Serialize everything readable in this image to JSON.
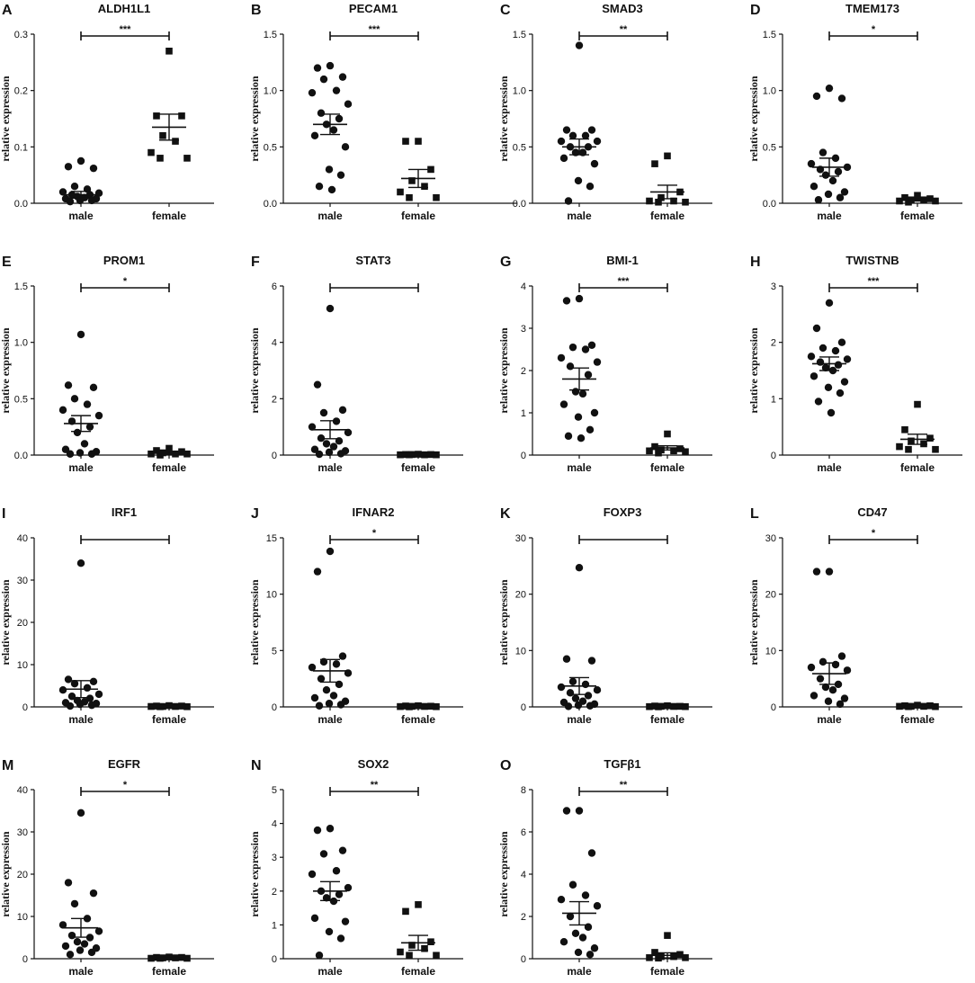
{
  "figure": {
    "ylabel": "relative expression",
    "groups": [
      "male",
      "female"
    ]
  },
  "chart_data": [
    {
      "id": "A",
      "type": "scatter",
      "title": "ALDH1L1",
      "ylabel": "relative expression",
      "ylim": [
        0,
        0.3
      ],
      "ticks": [
        0,
        0.1,
        0.2,
        0.3
      ],
      "tick_labels": [
        "0.0",
        "0.1",
        "0.2",
        "0.3"
      ],
      "significance": "***",
      "series": [
        {
          "name": "male",
          "marker": "circle",
          "values": [
            0.075,
            0.065,
            0.062,
            0.03,
            0.025,
            0.02,
            0.018,
            0.015,
            0.015,
            0.012,
            0.01,
            0.008,
            0.008,
            0.005,
            0.005,
            0.003
          ],
          "mean": 0.015,
          "sem": 0.006
        },
        {
          "name": "female",
          "marker": "square",
          "values": [
            0.27,
            0.155,
            0.155,
            0.12,
            0.11,
            0.09,
            0.08,
            0.08
          ],
          "mean": 0.135,
          "sem": 0.023
        }
      ]
    },
    {
      "id": "B",
      "type": "scatter",
      "title": "PECAM1",
      "ylabel": "relative expression",
      "ylim": [
        0,
        1.5
      ],
      "ticks": [
        0,
        0.5,
        1.0,
        1.5
      ],
      "tick_labels": [
        "0.0",
        "0.5",
        "1.0",
        "1.5"
      ],
      "significance": "***",
      "series": [
        {
          "name": "male",
          "marker": "circle",
          "values": [
            1.22,
            1.2,
            1.12,
            1.1,
            1.0,
            0.98,
            0.88,
            0.8,
            0.75,
            0.7,
            0.65,
            0.6,
            0.5,
            0.3,
            0.25,
            0.15,
            0.12
          ],
          "mean": 0.7,
          "sem": 0.09
        },
        {
          "name": "female",
          "marker": "square",
          "values": [
            0.55,
            0.55,
            0.3,
            0.2,
            0.15,
            0.1,
            0.05,
            0.05
          ],
          "mean": 0.22,
          "sem": 0.08
        }
      ]
    },
    {
      "id": "C",
      "type": "scatter",
      "title": "SMAD3",
      "ylabel": "relative expression",
      "ylim": [
        0,
        1.5
      ],
      "ticks": [
        0,
        0.5,
        1.0,
        1.5
      ],
      "tick_labels": [
        "0.0",
        "0.5",
        "1.0",
        "1.5"
      ],
      "significance": "**",
      "series": [
        {
          "name": "male",
          "marker": "circle",
          "values": [
            1.4,
            0.65,
            0.65,
            0.6,
            0.6,
            0.55,
            0.55,
            0.5,
            0.5,
            0.45,
            0.45,
            0.4,
            0.35,
            0.2,
            0.15,
            0.02
          ],
          "mean": 0.5,
          "sem": 0.07
        },
        {
          "name": "female",
          "marker": "square",
          "values": [
            0.42,
            0.35,
            0.1,
            0.05,
            0.02,
            0.02,
            0.01,
            0.01
          ],
          "mean": 0.1,
          "sem": 0.06
        }
      ]
    },
    {
      "id": "D",
      "type": "scatter",
      "title": "TMEM173",
      "ylabel": "relative expression",
      "ylim": [
        0,
        1.5
      ],
      "ticks": [
        0,
        0.5,
        1.0,
        1.5
      ],
      "tick_labels": [
        "0.0",
        "0.5",
        "1.0",
        "1.5"
      ],
      "significance": "*",
      "series": [
        {
          "name": "male",
          "marker": "circle",
          "values": [
            1.02,
            0.95,
            0.93,
            0.45,
            0.4,
            0.35,
            0.32,
            0.3,
            0.28,
            0.25,
            0.2,
            0.15,
            0.1,
            0.08,
            0.05,
            0.03
          ],
          "mean": 0.32,
          "sem": 0.08
        },
        {
          "name": "female",
          "marker": "square",
          "values": [
            0.07,
            0.05,
            0.04,
            0.03,
            0.03,
            0.02,
            0.02,
            0.01
          ],
          "mean": 0.03,
          "sem": 0.01
        }
      ]
    },
    {
      "id": "E",
      "type": "scatter",
      "title": "PROM1",
      "ylabel": "relative expression",
      "ylim": [
        0,
        1.5
      ],
      "ticks": [
        0,
        0.5,
        1.0,
        1.5
      ],
      "tick_labels": [
        "0.0",
        "0.5",
        "1.0",
        "1.5"
      ],
      "significance": "*",
      "series": [
        {
          "name": "male",
          "marker": "circle",
          "values": [
            1.07,
            0.62,
            0.6,
            0.5,
            0.45,
            0.4,
            0.35,
            0.3,
            0.25,
            0.2,
            0.1,
            0.05,
            0.03,
            0.02,
            0.01,
            0.01
          ],
          "mean": 0.28,
          "sem": 0.07
        },
        {
          "name": "female",
          "marker": "square",
          "values": [
            0.06,
            0.04,
            0.03,
            0.02,
            0.01,
            0.01,
            0.01,
            0.0
          ],
          "mean": 0.02,
          "sem": 0.01
        }
      ]
    },
    {
      "id": "F",
      "type": "scatter",
      "title": "STAT3",
      "ylabel": "relative expression",
      "ylim": [
        0,
        6
      ],
      "ticks": [
        0,
        2,
        4,
        6
      ],
      "tick_labels": [
        "0",
        "2",
        "4",
        "6"
      ],
      "significance": "",
      "series": [
        {
          "name": "male",
          "marker": "circle",
          "values": [
            5.2,
            2.5,
            1.6,
            1.5,
            1.2,
            1.0,
            0.8,
            0.6,
            0.5,
            0.4,
            0.3,
            0.2,
            0.15,
            0.1,
            0.05,
            0.03
          ],
          "mean": 0.9,
          "sem": 0.32
        },
        {
          "name": "female",
          "marker": "square",
          "values": [
            0.03,
            0.02,
            0.02,
            0.02,
            0.01,
            0.01,
            0.01,
            0.01
          ],
          "mean": 0.02,
          "sem": 0.005
        }
      ]
    },
    {
      "id": "G",
      "type": "scatter",
      "title": "BMI-1",
      "ylabel": "relative expression",
      "ylim": [
        0,
        4
      ],
      "ticks": [
        0,
        1,
        2,
        3,
        4
      ],
      "tick_labels": [
        "0",
        "1",
        "2",
        "3",
        "4"
      ],
      "significance": "***",
      "series": [
        {
          "name": "male",
          "marker": "circle",
          "values": [
            3.7,
            3.65,
            2.6,
            2.55,
            2.5,
            2.3,
            2.2,
            2.1,
            1.9,
            1.5,
            1.45,
            1.2,
            1.0,
            0.9,
            0.6,
            0.45,
            0.4
          ],
          "mean": 1.8,
          "sem": 0.26
        },
        {
          "name": "female",
          "marker": "square",
          "values": [
            0.5,
            0.2,
            0.15,
            0.12,
            0.1,
            0.1,
            0.08,
            0.05
          ],
          "mean": 0.17,
          "sem": 0.05
        }
      ]
    },
    {
      "id": "H",
      "type": "scatter",
      "title": "TWISTNB",
      "ylabel": "relative expression",
      "ylim": [
        0,
        3
      ],
      "ticks": [
        0,
        1,
        2,
        3
      ],
      "tick_labels": [
        "0",
        "1",
        "2",
        "3"
      ],
      "significance": "***",
      "series": [
        {
          "name": "male",
          "marker": "circle",
          "values": [
            2.7,
            2.25,
            2.0,
            1.9,
            1.85,
            1.75,
            1.7,
            1.65,
            1.6,
            1.55,
            1.5,
            1.4,
            1.3,
            1.2,
            1.1,
            0.95,
            0.75
          ],
          "mean": 1.62,
          "sem": 0.12
        },
        {
          "name": "female",
          "marker": "square",
          "values": [
            0.9,
            0.45,
            0.3,
            0.25,
            0.2,
            0.15,
            0.1,
            0.1
          ],
          "mean": 0.28,
          "sem": 0.09
        }
      ]
    },
    {
      "id": "I",
      "type": "scatter",
      "title": "IRF1",
      "ylabel": "relative expression",
      "ylim": [
        0,
        40
      ],
      "ticks": [
        0,
        10,
        20,
        30,
        40
      ],
      "tick_labels": [
        "0",
        "10",
        "20",
        "30",
        "40"
      ],
      "significance": "",
      "series": [
        {
          "name": "male",
          "marker": "circle",
          "values": [
            34,
            6.5,
            6,
            5.5,
            4.5,
            4,
            3,
            2.5,
            2,
            1.5,
            1.2,
            1,
            0.8,
            0.6,
            0.4,
            0.2
          ],
          "mean": 4.2,
          "sem": 2.0
        },
        {
          "name": "female",
          "marker": "square",
          "values": [
            0.3,
            0.2,
            0.2,
            0.1,
            0.1,
            0.1,
            0.05,
            0.05
          ],
          "mean": 0.14,
          "sem": 0.03
        }
      ]
    },
    {
      "id": "J",
      "type": "scatter",
      "title": "IFNAR2",
      "ylabel": "relative expression",
      "ylim": [
        0,
        15
      ],
      "ticks": [
        0,
        5,
        10,
        15
      ],
      "tick_labels": [
        "0",
        "5",
        "10",
        "15"
      ],
      "significance": "*",
      "series": [
        {
          "name": "male",
          "marker": "circle",
          "values": [
            13.8,
            12,
            4.5,
            4,
            3.8,
            3.5,
            3,
            2.5,
            2,
            1.5,
            1,
            0.8,
            0.5,
            0.3,
            0.2,
            0.1
          ],
          "mean": 3.2,
          "sem": 1.0
        },
        {
          "name": "female",
          "marker": "square",
          "values": [
            0.1,
            0.08,
            0.06,
            0.05,
            0.04,
            0.03,
            0.02,
            0.01
          ],
          "mean": 0.05,
          "sem": 0.01
        }
      ]
    },
    {
      "id": "K",
      "type": "scatter",
      "title": "FOXP3",
      "ylabel": "relative expression",
      "ylim": [
        0,
        30
      ],
      "ticks": [
        0,
        10,
        20,
        30
      ],
      "tick_labels": [
        "0",
        "10",
        "20",
        "30"
      ],
      "significance": "",
      "series": [
        {
          "name": "male",
          "marker": "circle",
          "values": [
            24.7,
            8.5,
            8.2,
            4.5,
            4,
            3.5,
            3,
            2.5,
            2,
            1.5,
            1,
            0.8,
            0.5,
            0.3,
            0.2,
            0.1
          ],
          "mean": 3.7,
          "sem": 1.5
        },
        {
          "name": "female",
          "marker": "square",
          "values": [
            0.2,
            0.15,
            0.1,
            0.1,
            0.08,
            0.05,
            0.05,
            0.02
          ],
          "mean": 0.1,
          "sem": 0.02
        }
      ]
    },
    {
      "id": "L",
      "type": "scatter",
      "title": "CD47",
      "ylabel": "relative expression",
      "ylim": [
        0,
        30
      ],
      "ticks": [
        0,
        10,
        20,
        30
      ],
      "tick_labels": [
        "0",
        "10",
        "20",
        "30"
      ],
      "significance": "*",
      "series": [
        {
          "name": "male",
          "marker": "circle",
          "values": [
            24,
            24,
            9,
            8,
            7.5,
            7,
            6.5,
            5,
            4,
            3.5,
            3,
            2,
            1.5,
            1,
            0.5
          ],
          "mean": 5.9,
          "sem": 1.9
        },
        {
          "name": "female",
          "marker": "square",
          "values": [
            0.3,
            0.2,
            0.2,
            0.1,
            0.1,
            0.1,
            0.05,
            0.05
          ],
          "mean": 0.14,
          "sem": 0.03
        }
      ]
    },
    {
      "id": "M",
      "type": "scatter",
      "title": "EGFR",
      "ylabel": "relative expression",
      "ylim": [
        0,
        40
      ],
      "ticks": [
        0,
        10,
        20,
        30,
        40
      ],
      "tick_labels": [
        "0",
        "10",
        "20",
        "30",
        "40"
      ],
      "significance": "*",
      "series": [
        {
          "name": "male",
          "marker": "circle",
          "values": [
            34.5,
            18,
            15.5,
            13,
            9.5,
            8,
            6.5,
            5.5,
            5,
            4,
            3.5,
            3,
            2.5,
            2,
            1.5,
            1
          ],
          "mean": 7.3,
          "sem": 2.2
        },
        {
          "name": "female",
          "marker": "square",
          "values": [
            0.4,
            0.3,
            0.3,
            0.2,
            0.2,
            0.1,
            0.1,
            0.1
          ],
          "mean": 0.2,
          "sem": 0.04
        }
      ]
    },
    {
      "id": "N",
      "type": "scatter",
      "title": "SOX2",
      "ylabel": "relative expression",
      "ylim": [
        0,
        5
      ],
      "ticks": [
        0,
        1,
        2,
        3,
        4,
        5
      ],
      "tick_labels": [
        "0",
        "1",
        "2",
        "3",
        "4",
        "5"
      ],
      "significance": "**",
      "series": [
        {
          "name": "male",
          "marker": "circle",
          "values": [
            3.85,
            3.8,
            3.2,
            3.1,
            2.6,
            2.5,
            2.1,
            2.0,
            1.9,
            1.8,
            1.7,
            1.2,
            1.1,
            0.8,
            0.6,
            0.1
          ],
          "mean": 2.0,
          "sem": 0.28
        },
        {
          "name": "female",
          "marker": "square",
          "values": [
            1.6,
            1.4,
            0.5,
            0.4,
            0.3,
            0.2,
            0.1,
            0.1
          ],
          "mean": 0.47,
          "sem": 0.22
        }
      ]
    },
    {
      "id": "O",
      "type": "scatter",
      "title": "TGFβ1",
      "ylabel": "relative expression",
      "ylim": [
        0,
        8
      ],
      "ticks": [
        0,
        2,
        4,
        6,
        8
      ],
      "tick_labels": [
        "0",
        "2",
        "4",
        "6",
        "8"
      ],
      "significance": "**",
      "series": [
        {
          "name": "male",
          "marker": "circle",
          "values": [
            7,
            7,
            5,
            3.5,
            3,
            2.8,
            2.5,
            2,
            1.5,
            1.2,
            1,
            0.8,
            0.5,
            0.3,
            0.2
          ],
          "mean": 2.15,
          "sem": 0.55
        },
        {
          "name": "female",
          "marker": "square",
          "values": [
            1.1,
            0.3,
            0.2,
            0.1,
            0.1,
            0.05,
            0.05,
            0.03
          ],
          "mean": 0.16,
          "sem": 0.12
        }
      ]
    }
  ]
}
